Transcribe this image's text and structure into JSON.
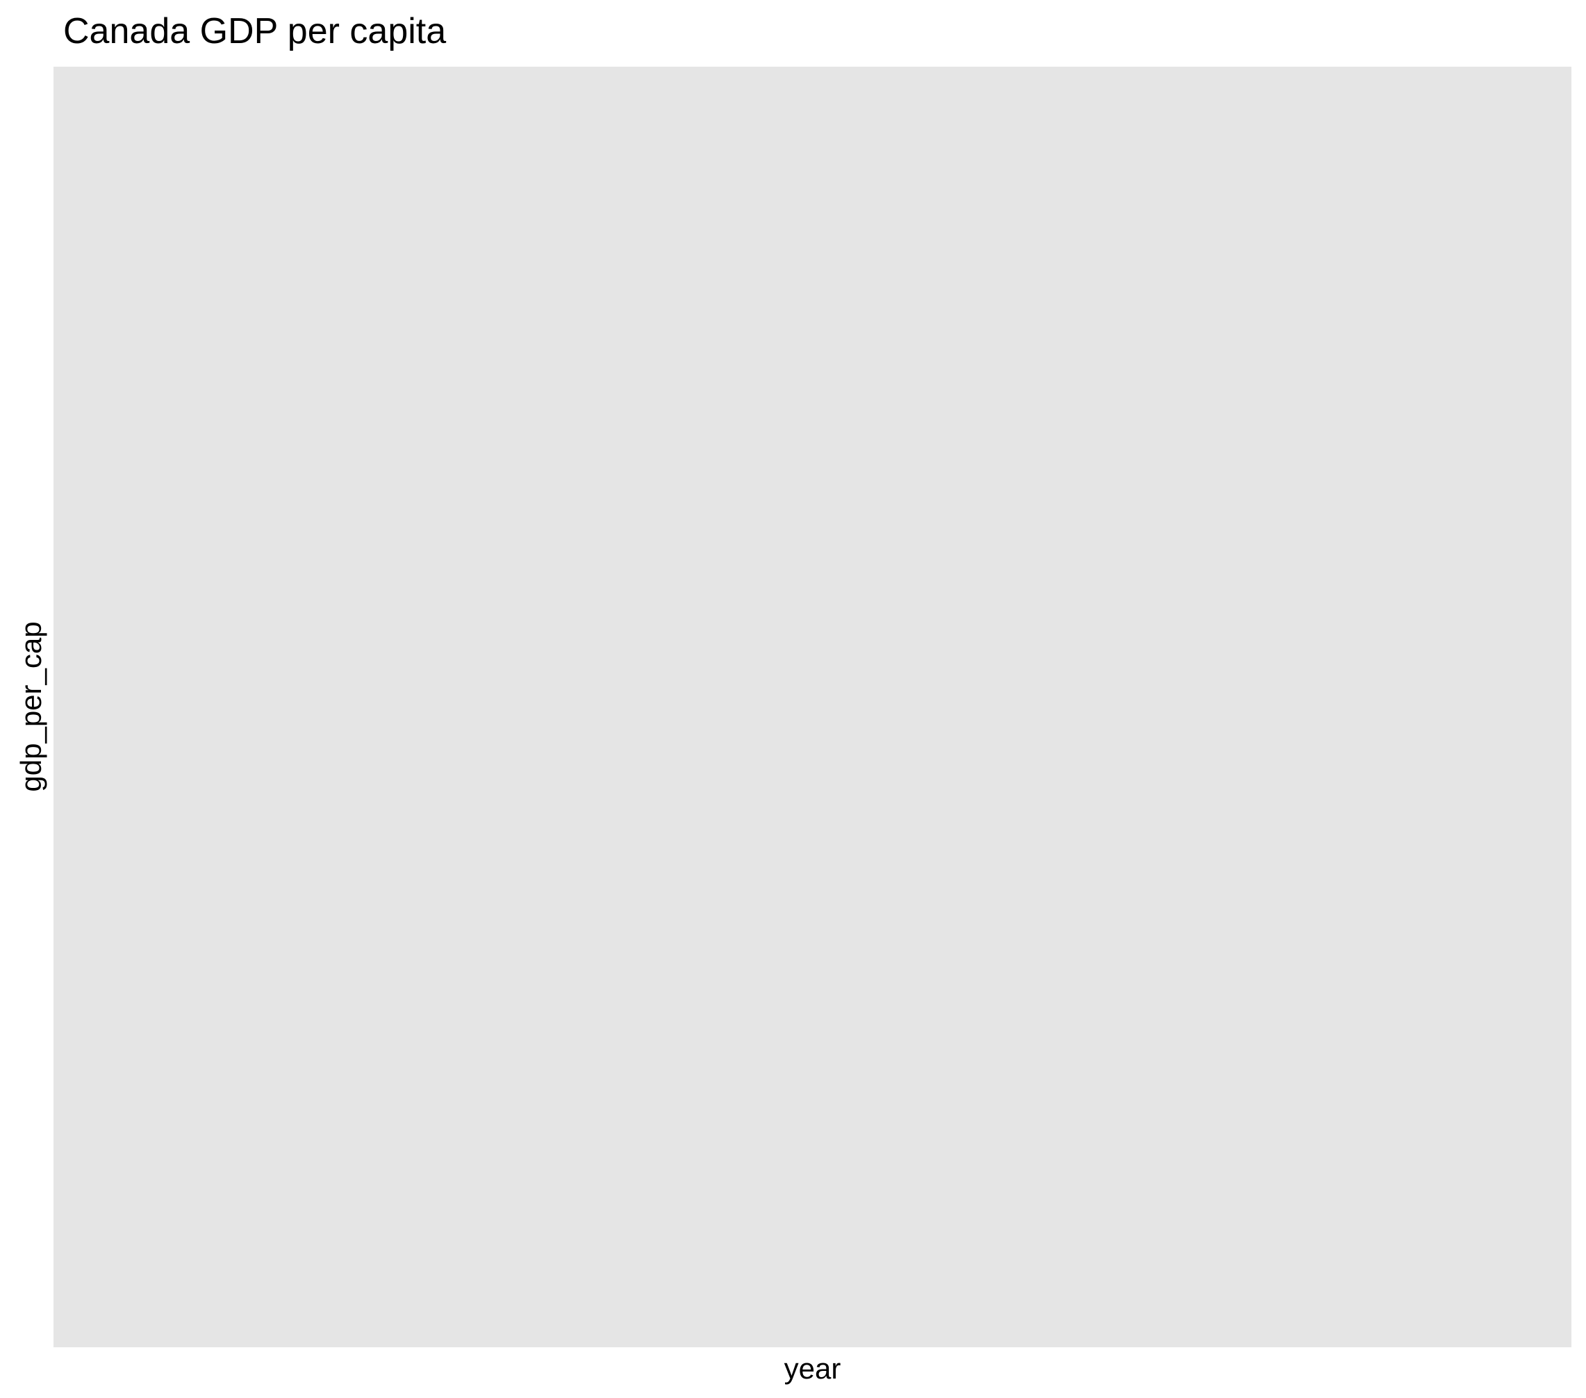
{
  "chart_data": {
    "type": "line",
    "title": "Canada GDP per capita",
    "xlabel": "year",
    "ylabel": "gdp_per_cap",
    "series": [],
    "grid": false,
    "panel_background": "#e5e5e5",
    "page_background": "#ffffff",
    "text_color": "#000000"
  }
}
